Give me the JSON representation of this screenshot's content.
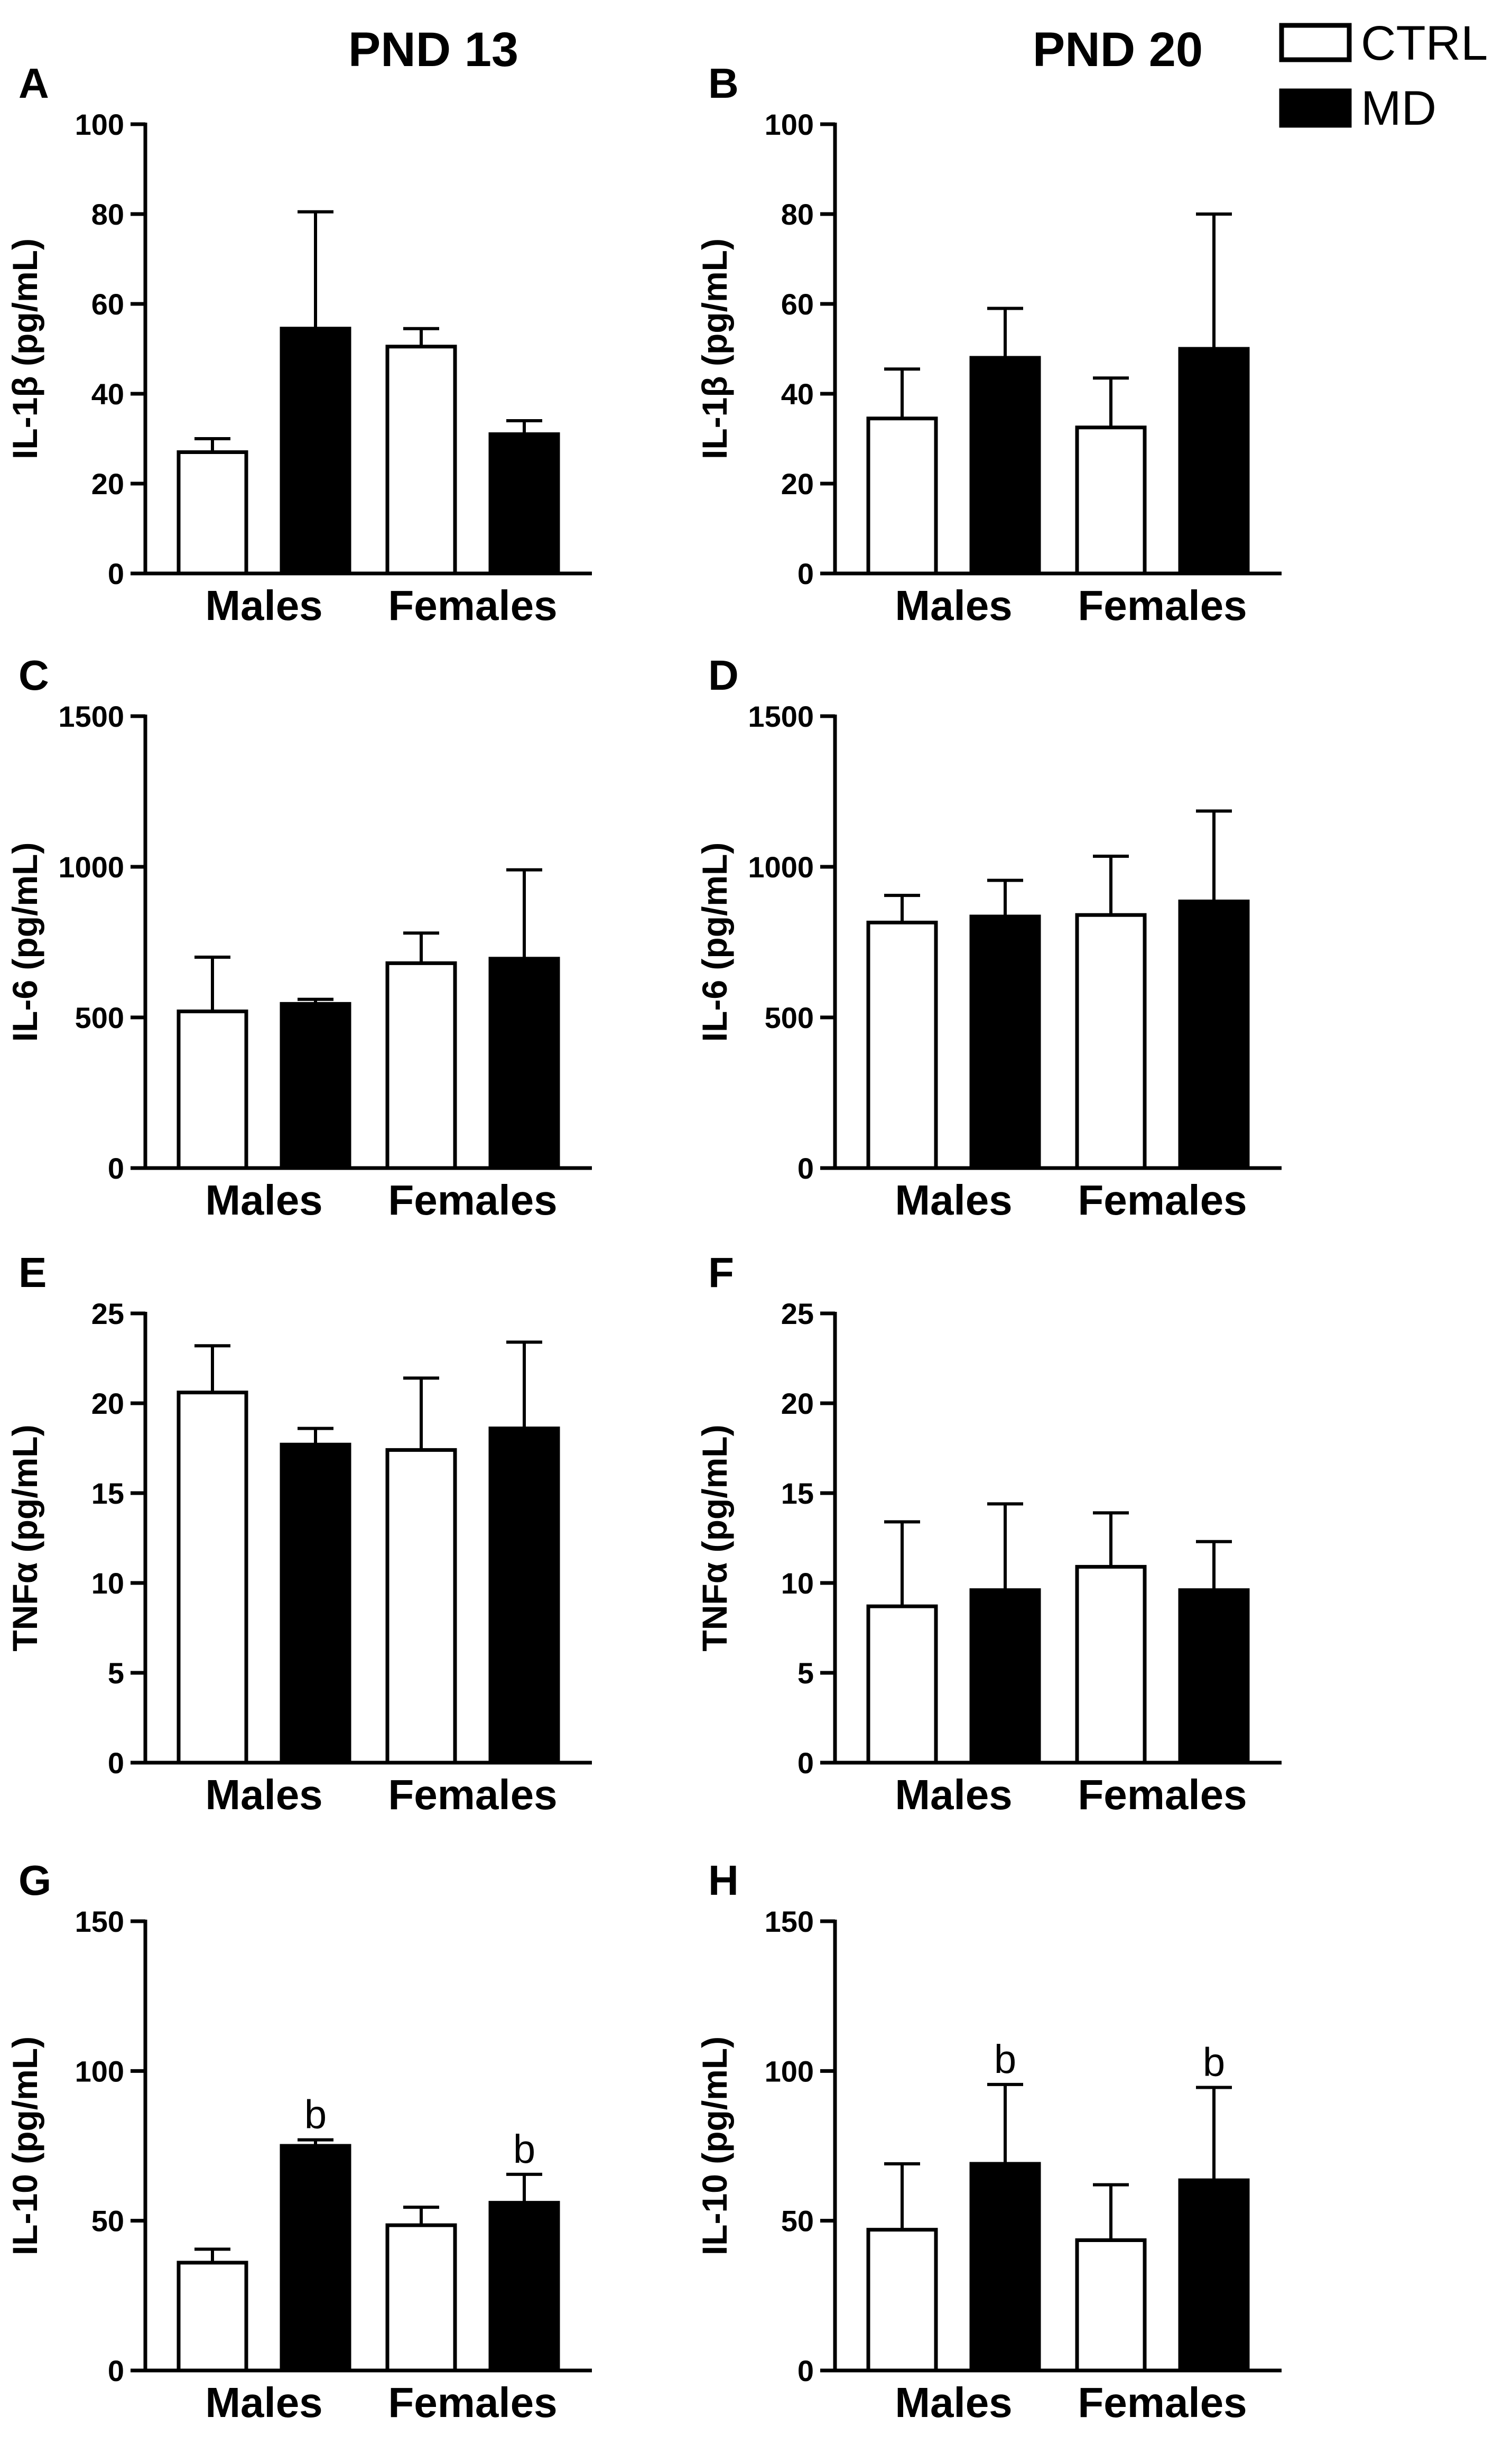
{
  "column_titles": [
    "PND 13",
    "PND 20"
  ],
  "legend": [
    {
      "label": "CTRL",
      "fill": "#ffffff"
    },
    {
      "label": "MD",
      "fill": "#000000"
    }
  ],
  "chart_data": [
    {
      "panel": "A",
      "type": "bar",
      "column": "PND 13",
      "ylabel": "IL-1β (pg/mL)",
      "ylim": [
        0,
        100
      ],
      "yticks": [
        0,
        20,
        40,
        60,
        80,
        100
      ],
      "groups": [
        "Males",
        "Females"
      ],
      "series": [
        {
          "name": "CTRL",
          "values": [
            27,
            50.5
          ],
          "errors": [
            3,
            4
          ]
        },
        {
          "name": "MD",
          "values": [
            54.5,
            31
          ],
          "errors": [
            26,
            3
          ]
        }
      ],
      "annotations": [
        null,
        null,
        null,
        null
      ]
    },
    {
      "panel": "B",
      "type": "bar",
      "column": "PND 20",
      "ylabel": "IL-1β (pg/mL)",
      "ylim": [
        0,
        100
      ],
      "yticks": [
        0,
        20,
        40,
        60,
        80,
        100
      ],
      "groups": [
        "Males",
        "Females"
      ],
      "series": [
        {
          "name": "CTRL",
          "values": [
            34.5,
            32.5
          ],
          "errors": [
            11,
            11
          ]
        },
        {
          "name": "MD",
          "values": [
            48,
            50
          ],
          "errors": [
            11,
            30
          ]
        }
      ],
      "annotations": [
        null,
        null,
        null,
        null
      ]
    },
    {
      "panel": "C",
      "type": "bar",
      "column": "PND 13",
      "ylabel": "IL-6 (pg/mL)",
      "ylim": [
        0,
        1500
      ],
      "yticks": [
        0,
        500,
        1000,
        1500
      ],
      "groups": [
        "Males",
        "Females"
      ],
      "series": [
        {
          "name": "CTRL",
          "values": [
            520,
            680
          ],
          "errors": [
            180,
            100
          ]
        },
        {
          "name": "MD",
          "values": [
            545,
            695
          ],
          "errors": [
            15,
            295
          ]
        }
      ],
      "annotations": [
        null,
        null,
        null,
        null
      ]
    },
    {
      "panel": "D",
      "type": "bar",
      "column": "PND 20",
      "ylabel": "IL-6 (pg/mL)",
      "ylim": [
        0,
        1500
      ],
      "yticks": [
        0,
        500,
        1000,
        1500
      ],
      "groups": [
        "Males",
        "Females"
      ],
      "series": [
        {
          "name": "CTRL",
          "values": [
            815,
            840
          ],
          "errors": [
            90,
            195
          ]
        },
        {
          "name": "MD",
          "values": [
            835,
            885
          ],
          "errors": [
            120,
            300
          ]
        }
      ],
      "annotations": [
        null,
        null,
        null,
        null
      ]
    },
    {
      "panel": "E",
      "type": "bar",
      "column": "PND 13",
      "ylabel": "TNFα (pg/mL)",
      "ylim": [
        0,
        25
      ],
      "yticks": [
        0,
        5,
        10,
        15,
        20,
        25
      ],
      "groups": [
        "Males",
        "Females"
      ],
      "series": [
        {
          "name": "CTRL",
          "values": [
            20.6,
            17.4
          ],
          "errors": [
            2.6,
            4.0
          ]
        },
        {
          "name": "MD",
          "values": [
            17.7,
            18.6
          ],
          "errors": [
            0.9,
            4.8
          ]
        }
      ],
      "annotations": [
        null,
        null,
        null,
        null
      ]
    },
    {
      "panel": "F",
      "type": "bar",
      "column": "PND 20",
      "ylabel": "TNFα (pg/mL)",
      "ylim": [
        0,
        25
      ],
      "yticks": [
        0,
        5,
        10,
        15,
        20,
        25
      ],
      "groups": [
        "Males",
        "Females"
      ],
      "series": [
        {
          "name": "CTRL",
          "values": [
            8.7,
            10.9
          ],
          "errors": [
            4.7,
            3.0
          ]
        },
        {
          "name": "MD",
          "values": [
            9.6,
            9.6
          ],
          "errors": [
            4.8,
            2.7
          ]
        }
      ],
      "annotations": [
        null,
        null,
        null,
        null
      ]
    },
    {
      "panel": "G",
      "type": "bar",
      "column": "PND 13",
      "ylabel": "IL-10 (pg/mL)",
      "ylim": [
        0,
        150
      ],
      "yticks": [
        0,
        50,
        100,
        150
      ],
      "groups": [
        "Males",
        "Females"
      ],
      "series": [
        {
          "name": "CTRL",
          "values": [
            36,
            48.5
          ],
          "errors": [
            4.5,
            6
          ]
        },
        {
          "name": "MD",
          "values": [
            75,
            56
          ],
          "errors": [
            2,
            9.5
          ]
        }
      ],
      "annotations": [
        null,
        "b",
        null,
        "b"
      ]
    },
    {
      "panel": "H",
      "type": "bar",
      "column": "PND 20",
      "ylabel": "IL-10 (pg/mL)",
      "ylim": [
        0,
        150
      ],
      "yticks": [
        0,
        50,
        100,
        150
      ],
      "groups": [
        "Males",
        "Females"
      ],
      "series": [
        {
          "name": "CTRL",
          "values": [
            47,
            43.5
          ],
          "errors": [
            22,
            18.5
          ]
        },
        {
          "name": "MD",
          "values": [
            69,
            63.5
          ],
          "errors": [
            26.5,
            31
          ]
        }
      ],
      "annotations": [
        null,
        "b",
        null,
        "b"
      ]
    }
  ]
}
